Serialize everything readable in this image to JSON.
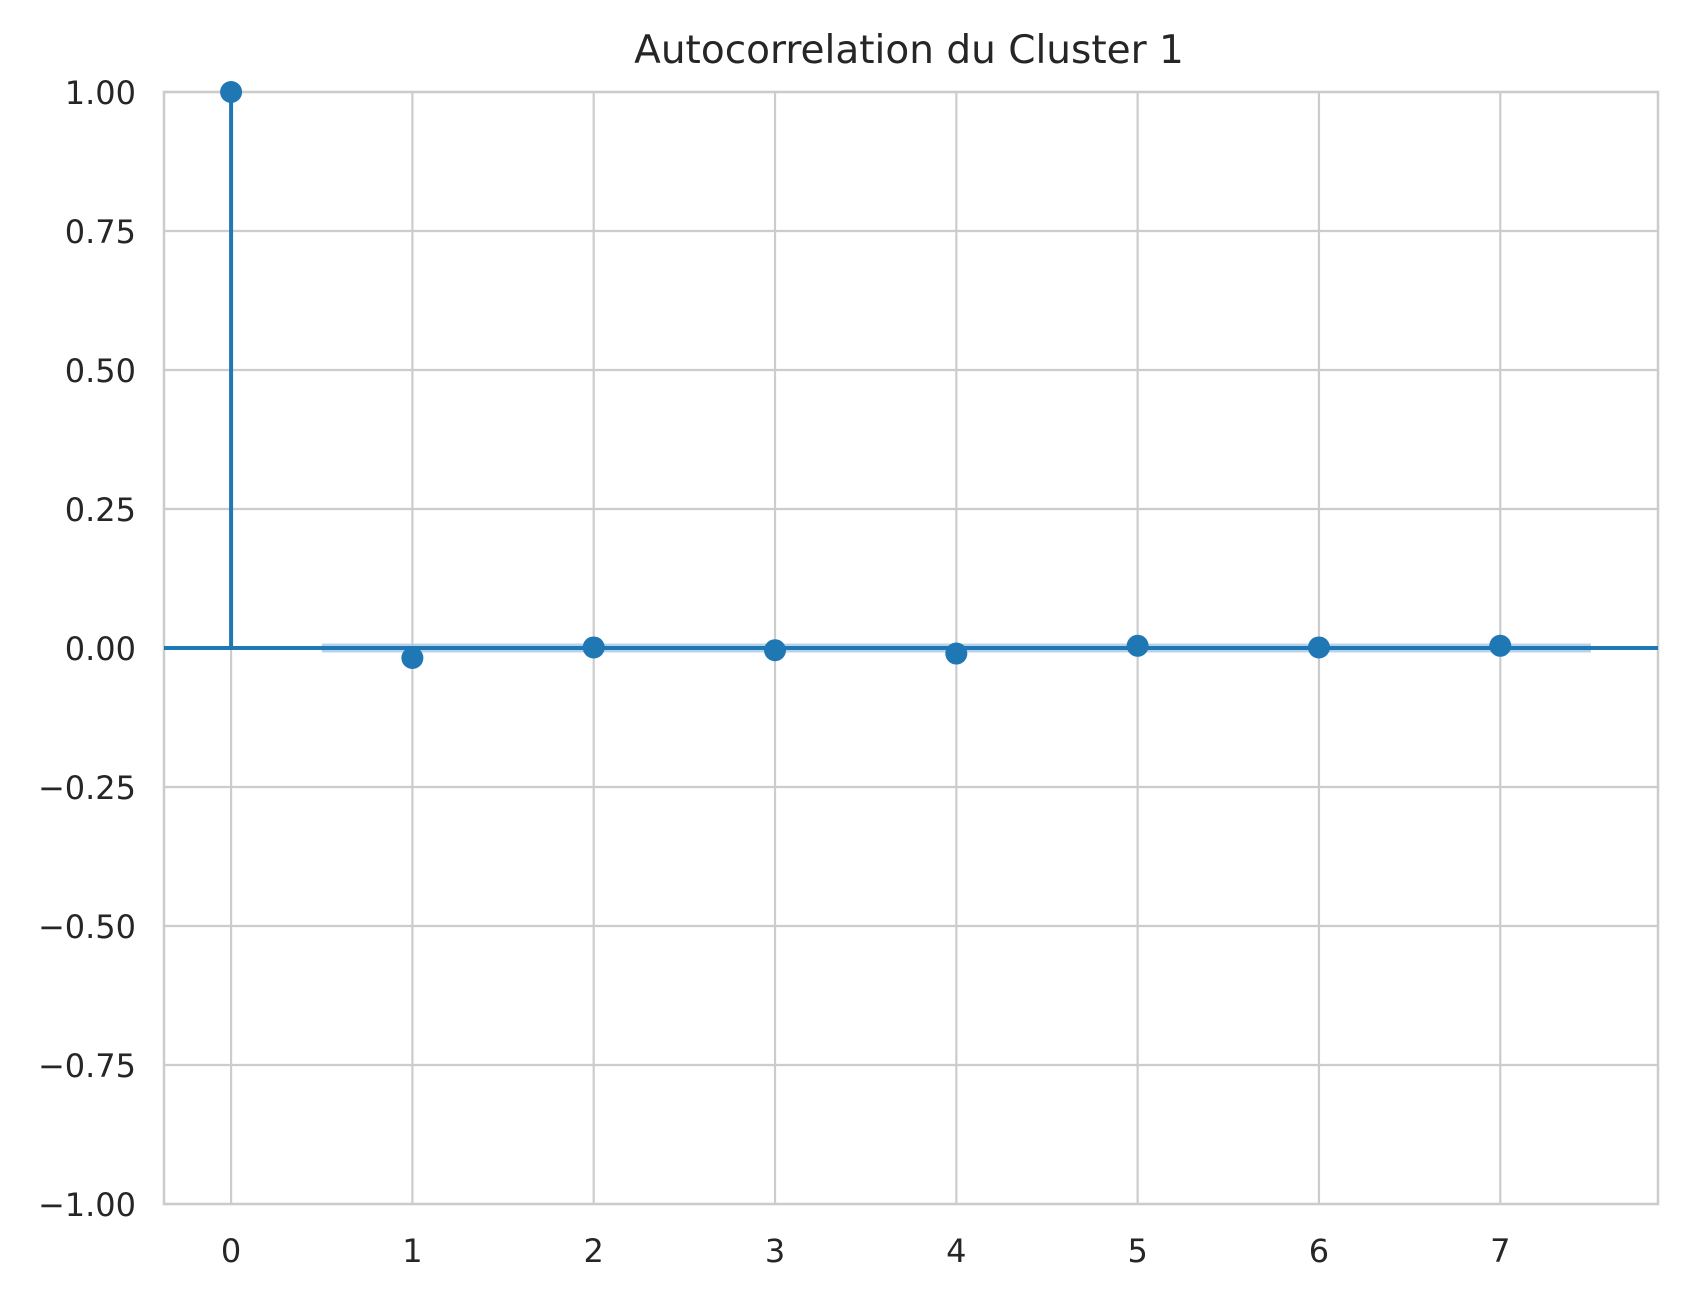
{
  "chart_data": {
    "type": "scatter",
    "subtype": "stem",
    "title": "Autocorrelation du Cluster 1",
    "xlabel": "",
    "ylabel": "",
    "x": [
      0,
      1,
      2,
      3,
      4,
      5,
      6,
      7
    ],
    "values": [
      1.0,
      -0.018,
      0.001,
      -0.004,
      -0.01,
      0.004,
      0.001,
      0.004
    ],
    "confidence_band": {
      "x_range": [
        0.5,
        7.5
      ],
      "lower": -0.008,
      "upper": 0.008
    },
    "xlim": [
      -0.37,
      7.87
    ],
    "ylim": [
      -1.0,
      1.0
    ],
    "x_ticks": [
      0,
      1,
      2,
      3,
      4,
      5,
      6,
      7
    ],
    "y_ticks": [
      1.0,
      0.75,
      0.5,
      0.25,
      0.0,
      -0.25,
      -0.5,
      -0.75,
      -1.0
    ],
    "x_tick_labels": [
      "0",
      "1",
      "2",
      "3",
      "4",
      "5",
      "6",
      "7"
    ],
    "y_tick_labels": [
      "1.00",
      "0.75",
      "0.50",
      "0.25",
      "0.00",
      "−0.25",
      "−0.50",
      "−0.75",
      "−1.00"
    ],
    "grid": true,
    "legend": "none",
    "colors": {
      "series": "#1f77b4",
      "band": "#a9c9e6",
      "grid": "#cccccc",
      "text": "#262626",
      "background": "#ffffff"
    }
  }
}
